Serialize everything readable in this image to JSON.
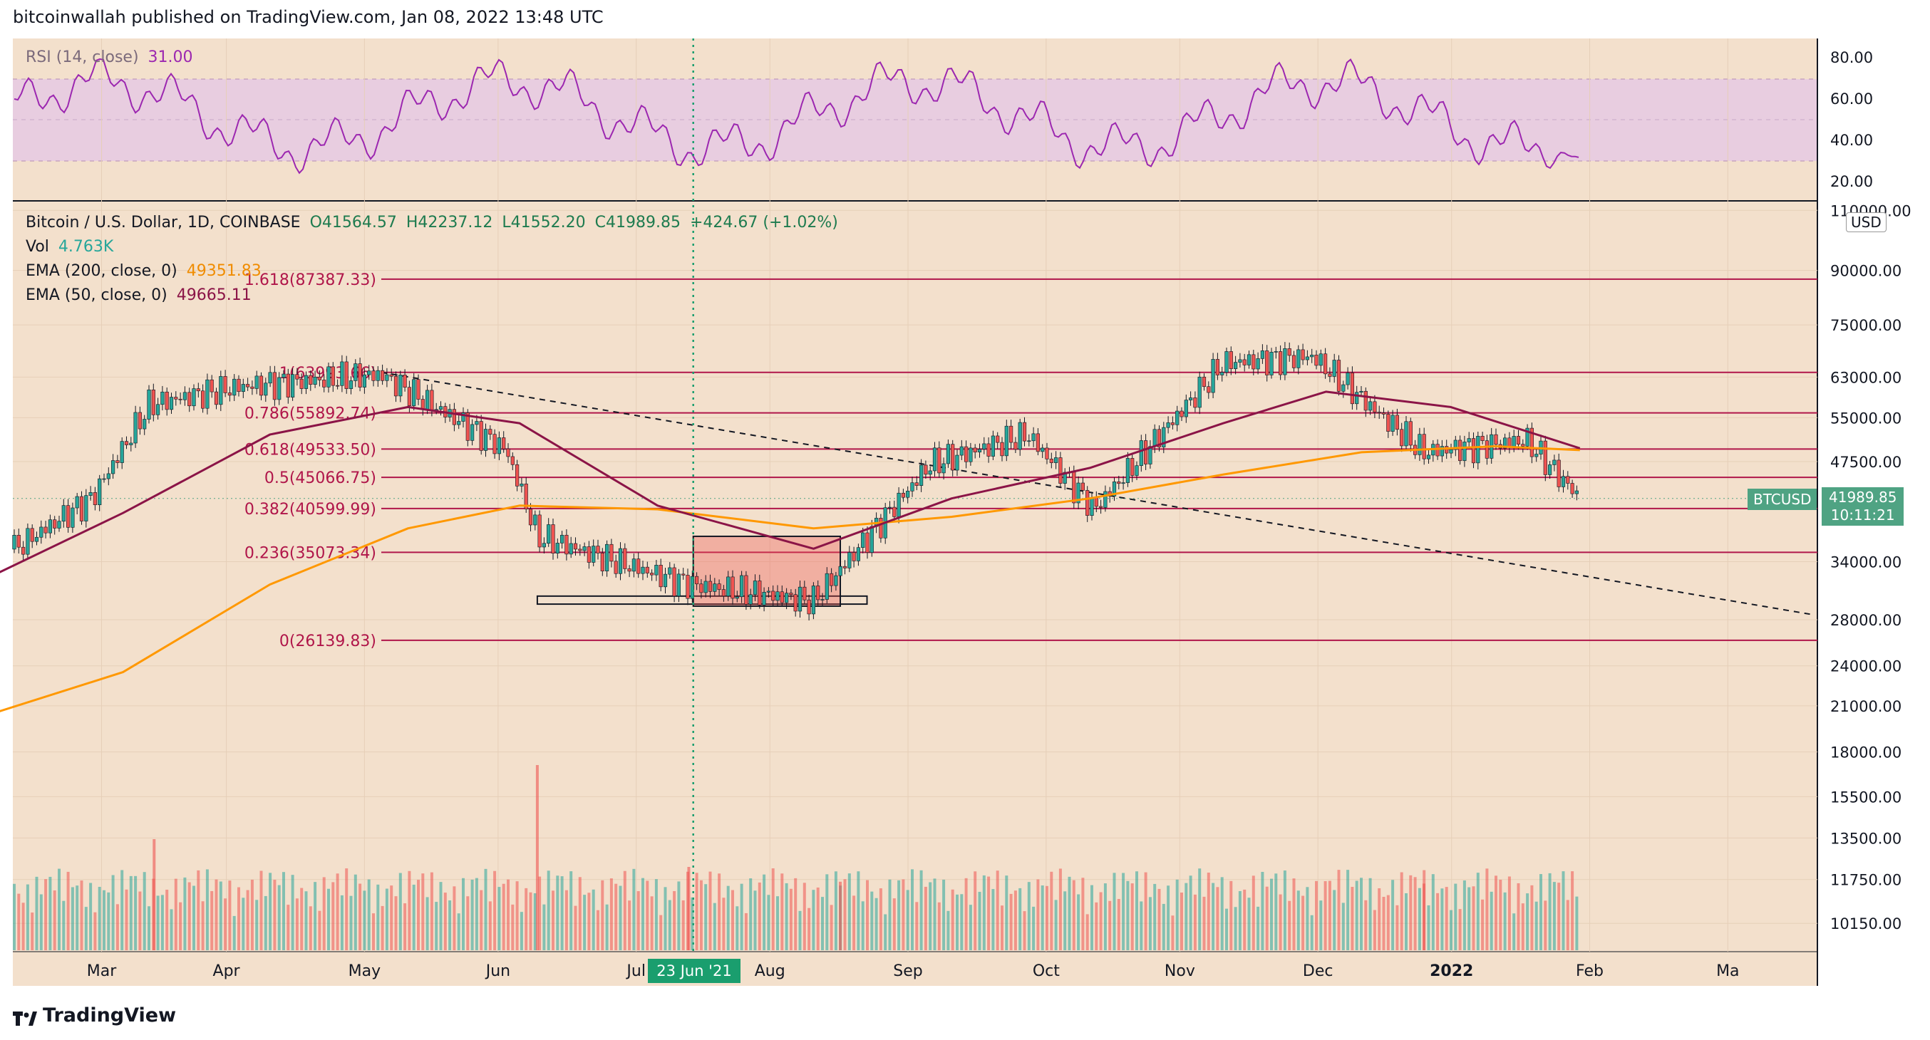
{
  "header": {
    "published": "bitcoinwallah published on TradingView.com, Jan 08, 2022 13:48 UTC"
  },
  "brand": {
    "logo_text": "TradingView"
  },
  "rsi_legend": {
    "label": "RSI (14, close)",
    "value": "31.00"
  },
  "main_legend": {
    "symbol": "Bitcoin / U.S. Dollar, 1D, COINBASE",
    "open": "O41564.57",
    "high": "H42237.12",
    "low": "L41552.20",
    "close": "C41989.85",
    "change": "+424.67 (+1.02%)",
    "vol_label": "Vol",
    "vol_value": "4.763K",
    "ema200_label": "EMA (200, close, 0)",
    "ema200_value": "49351.83",
    "ema50_label": "EMA (50, close, 0)",
    "ema50_value": "49665.11"
  },
  "currency": "USD",
  "last_price": {
    "symbol": "BTCUSD",
    "price": "41989.85",
    "countdown": "10:11:21"
  },
  "cursor_date": "23 Jun '21",
  "colors": {
    "background": "#f3e0cc",
    "rsi_band": "#e8cde0",
    "rsi_line": "#9c27b0",
    "fib": "#b0164a",
    "ema200": "#ff9800",
    "ema50": "#8b1447",
    "up": "#26a69a",
    "down": "#ef5350",
    "cursor": "#1a9e6e",
    "tag": "#4fa383"
  },
  "chart_data": {
    "type": "candlestick",
    "symbol": "BTCUSD",
    "x_axis_labels": [
      "Feb",
      "Mar",
      "Apr",
      "May",
      "Jun",
      "Jul",
      "Aug",
      "Sep",
      "Oct",
      "Nov",
      "Dec",
      "2022",
      "Feb",
      "Ma"
    ],
    "price_axis_labels": [
      "110000.00",
      "90000.00",
      "75000.00",
      "63000.00",
      "55000.00",
      "47500.00",
      "34000.00",
      "28000.00",
      "24000.00",
      "21000.00",
      "18000.00",
      "15500.00",
      "13500.00",
      "11750.00",
      "10150.00"
    ],
    "price_axis_values": [
      110000,
      90000,
      75000,
      63000,
      55000,
      47500,
      34000,
      28000,
      24000,
      21000,
      18000,
      15500,
      13500,
      11750,
      10150
    ],
    "rsi_axis_labels": [
      "80.00",
      "60.00",
      "40.00",
      "20.00"
    ],
    "rsi_axis_values": [
      80,
      60,
      40,
      20
    ],
    "rsi_range": [
      30,
      70
    ],
    "fib_levels": [
      {
        "label": "1.618(87387.33)",
        "price": 87387.33
      },
      {
        "label": "1(63993.66)",
        "price": 63993.66
      },
      {
        "label": "0.786(55892.74)",
        "price": 55892.74
      },
      {
        "label": "0.618(49533.50)",
        "price": 49533.5
      },
      {
        "label": "0.5(45066.75)",
        "price": 45066.75
      },
      {
        "label": "0.382(40599.99)",
        "price": 40599.99
      },
      {
        "label": "0.236(35073.34)",
        "price": 35073.34
      },
      {
        "label": "0(26139.83)",
        "price": 26139.83
      }
    ],
    "last_close": 41989.85,
    "last_rsi": 31.0,
    "monthly_closes": [
      {
        "date": "2021-01-01",
        "price": 29000
      },
      {
        "date": "2021-02-08",
        "price": 42000
      },
      {
        "date": "2021-02-21",
        "price": 57500
      },
      {
        "date": "2021-03-13",
        "price": 61000
      },
      {
        "date": "2021-04-14",
        "price": 63500
      },
      {
        "date": "2021-05-12",
        "price": 49500
      },
      {
        "date": "2021-05-19",
        "price": 37000
      },
      {
        "date": "2021-06-22",
        "price": 31500
      },
      {
        "date": "2021-07-20",
        "price": 29800
      },
      {
        "date": "2021-08-15",
        "price": 47000
      },
      {
        "date": "2021-09-06",
        "price": 52000
      },
      {
        "date": "2021-09-21",
        "price": 40500
      },
      {
        "date": "2021-10-20",
        "price": 66000
      },
      {
        "date": "2021-11-09",
        "price": 67500
      },
      {
        "date": "2021-12-04",
        "price": 49000
      },
      {
        "date": "2021-12-27",
        "price": 51000
      },
      {
        "date": "2022-01-08",
        "price": 41989.85
      }
    ],
    "ema50": [
      {
        "date": "2021-01-01",
        "price": 29000
      },
      {
        "date": "2021-02-15",
        "price": 40000
      },
      {
        "date": "2021-03-20",
        "price": 52000
      },
      {
        "date": "2021-04-20",
        "price": 57000
      },
      {
        "date": "2021-05-15",
        "price": 54000
      },
      {
        "date": "2021-06-15",
        "price": 41000
      },
      {
        "date": "2021-07-20",
        "price": 35500
      },
      {
        "date": "2021-08-20",
        "price": 42000
      },
      {
        "date": "2021-09-20",
        "price": 46500
      },
      {
        "date": "2021-10-20",
        "price": 54000
      },
      {
        "date": "2021-11-12",
        "price": 60000
      },
      {
        "date": "2021-12-10",
        "price": 57000
      },
      {
        "date": "2022-01-08",
        "price": 49665.11
      }
    ],
    "ema200": [
      {
        "date": "2021-01-01",
        "price": 19000
      },
      {
        "date": "2021-02-15",
        "price": 23500
      },
      {
        "date": "2021-03-20",
        "price": 31500
      },
      {
        "date": "2021-04-20",
        "price": 38000
      },
      {
        "date": "2021-05-15",
        "price": 41000
      },
      {
        "date": "2021-06-15",
        "price": 40500
      },
      {
        "date": "2021-07-20",
        "price": 38000
      },
      {
        "date": "2021-08-20",
        "price": 39500
      },
      {
        "date": "2021-09-20",
        "price": 42000
      },
      {
        "date": "2021-10-20",
        "price": 45500
      },
      {
        "date": "2021-11-20",
        "price": 49000
      },
      {
        "date": "2021-12-20",
        "price": 50000
      },
      {
        "date": "2022-01-08",
        "price": 49351.83
      }
    ],
    "trendline": [
      {
        "date": "2021-04-14",
        "price": 64000
      },
      {
        "date": "2022-03-01",
        "price": 28500
      }
    ],
    "ranges": [
      {
        "start": "2021-05-19",
        "end": "2021-08-01",
        "low": 29500,
        "high": 30300
      },
      {
        "start": "2021-06-23",
        "end": "2021-07-26",
        "low": 29300,
        "high": 37000
      }
    ],
    "volume_spikes": [
      {
        "date": "2021-01-03",
        "relative": 0.45
      },
      {
        "date": "2021-01-11",
        "relative": 0.65
      },
      {
        "date": "2021-02-22",
        "relative": 0.6
      },
      {
        "date": "2021-05-19",
        "relative": 1.0
      },
      {
        "date": "2021-06-22",
        "relative": 0.45
      },
      {
        "date": "2021-07-26",
        "relative": 0.37
      },
      {
        "date": "2021-12-04",
        "relative": 0.36
      }
    ]
  }
}
